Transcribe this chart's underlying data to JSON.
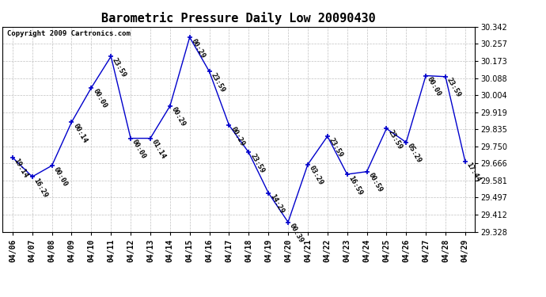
{
  "title": "Barometric Pressure Daily Low 20090430",
  "copyright": "Copyright 2009 Cartronics.com",
  "x_labels": [
    "04/06",
    "04/07",
    "04/08",
    "04/09",
    "04/10",
    "04/11",
    "04/12",
    "04/13",
    "04/14",
    "04/15",
    "04/16",
    "04/17",
    "04/18",
    "04/19",
    "04/20",
    "04/21",
    "04/22",
    "04/23",
    "04/24",
    "04/25",
    "04/26",
    "04/27",
    "04/28",
    "04/29"
  ],
  "y_values": [
    29.695,
    29.6,
    29.655,
    29.87,
    30.04,
    30.195,
    29.79,
    29.79,
    29.95,
    30.29,
    30.12,
    29.855,
    29.72,
    29.52,
    29.375,
    29.66,
    29.8,
    29.612,
    29.625,
    29.838,
    29.77,
    30.1,
    30.095,
    29.675
  ],
  "point_labels": [
    "19:14",
    "16:29",
    "00:00",
    "00:14",
    "00:00",
    "23:59",
    "00:00",
    "01:14",
    "00:29",
    "00:29",
    "23:59",
    "00:29",
    "23:59",
    "14:29",
    "00:39",
    "03:29",
    "23:59",
    "16:59",
    "00:59",
    "23:59",
    "05:29",
    "00:00",
    "23:59",
    "17:44"
  ],
  "ylim": [
    29.328,
    30.342
  ],
  "y_ticks": [
    29.328,
    29.412,
    29.497,
    29.581,
    29.666,
    29.75,
    29.835,
    29.919,
    30.004,
    30.088,
    30.173,
    30.257,
    30.342
  ],
  "line_color": "#0000CC",
  "marker_color": "#0000CC",
  "bg_color": "#FFFFFF",
  "grid_color": "#C0C0C0",
  "title_fontsize": 11,
  "label_fontsize": 6.5,
  "tick_fontsize": 7,
  "copyright_fontsize": 6.5
}
